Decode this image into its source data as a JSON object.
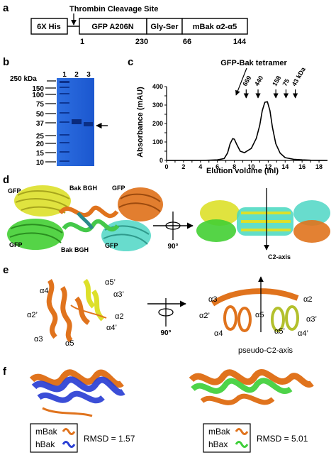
{
  "panels": {
    "a": "a",
    "b": "b",
    "c": "c",
    "d": "d",
    "e": "e",
    "f": "f"
  },
  "construct": {
    "cleavage_label": "Thrombin Cleavage Site",
    "segments": [
      "6X His",
      "GFP A206N",
      "Gly-Ser",
      "mBak α2-α5"
    ],
    "numbers": [
      "1",
      "230",
      "66",
      "144"
    ]
  },
  "gel": {
    "kda_label": "250 kDa",
    "markers": [
      "150",
      "100",
      "75",
      "50",
      "37",
      "25",
      "20",
      "15",
      "10"
    ],
    "lanes": [
      "1",
      "2",
      "3"
    ]
  },
  "chart_data": {
    "type": "line",
    "title": "GFP-Bak tetramer",
    "xlabel": "Elution volume (ml)",
    "ylabel": "Absorbance (mAU)",
    "xlim": [
      0,
      19
    ],
    "ylim": [
      0,
      400
    ],
    "xticks": [
      0,
      1,
      2,
      3,
      4,
      5,
      6,
      7,
      8,
      9,
      10,
      11,
      12,
      13,
      14,
      15,
      16,
      17,
      18
    ],
    "yticks": [
      0,
      50,
      100,
      150,
      200,
      250,
      300,
      350,
      400
    ],
    "grid": false,
    "standards": [
      {
        "label": "669",
        "x": 9.4
      },
      {
        "label": "440",
        "x": 10.8
      },
      {
        "label": "158",
        "x": 12.9
      },
      {
        "label": "75",
        "x": 14.1
      },
      {
        "label": "43 kDa",
        "x": 15.2
      }
    ],
    "series": [
      {
        "x": [
          0,
          2,
          4,
          5,
          6,
          6.8,
          7.2,
          7.5,
          7.8,
          8.0,
          8.3,
          8.7,
          9.2,
          10.0,
          10.6,
          11.0,
          11.3,
          11.6,
          11.9,
          12.2,
          12.5,
          12.9,
          13.4,
          14.0,
          15.0,
          16.0,
          17.0,
          19.0
        ],
        "y": [
          0,
          0,
          0,
          1,
          3,
          10,
          40,
          90,
          118,
          115,
          85,
          50,
          42,
          65,
          120,
          190,
          270,
          315,
          318,
          270,
          180,
          90,
          40,
          15,
          6,
          3,
          1,
          0
        ]
      }
    ]
  },
  "struct_d": {
    "gfp": "GFP",
    "bgh": "Bak BGH",
    "rotation": "90°",
    "axis": "C2-axis"
  },
  "struct_e": {
    "left_labels": [
      "α4",
      "α5’",
      "α3’",
      "α2’",
      "α2",
      "α4’",
      "α3",
      "α5"
    ],
    "rotation": "90°",
    "right_labels": [
      "α3",
      "α2",
      "α2’",
      "α5",
      "α3’",
      "α4",
      "α5’",
      "α4’"
    ],
    "axis": "pseudo-C2-axis"
  },
  "struct_f": {
    "left_legend": [
      "mBak",
      "hBak"
    ],
    "left_rmsd": "RMSD = 1.57",
    "right_legend": [
      "mBak",
      "hBax"
    ],
    "right_rmsd": "RMSD = 5.01"
  },
  "colors": {
    "orange": "#e0731d",
    "blue": "#2a3fd4",
    "green": "#3fcf3a",
    "yellow": "#e6e62a",
    "cyan": "#58d8c8",
    "gel": "#1a5fd8"
  }
}
